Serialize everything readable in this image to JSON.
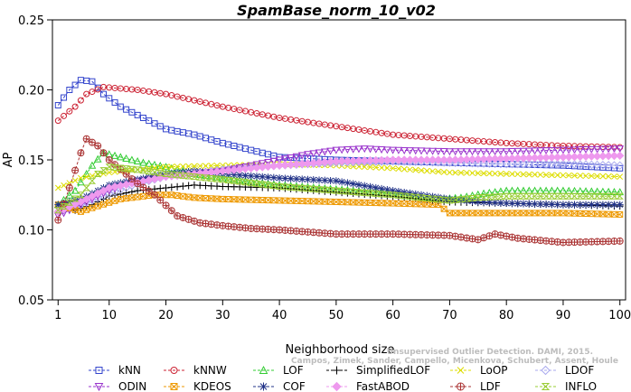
{
  "chart_data": {
    "type": "line",
    "title": "SpamBase_norm_10_v02",
    "xlabel": "Neighborhood size",
    "ylabel": "AP",
    "xlim": [
      0,
      101
    ],
    "ylim": [
      0.05,
      0.25
    ],
    "x_ticks": [
      "1",
      "10",
      "20",
      "30",
      "40",
      "50",
      "60",
      "70",
      "80",
      "90",
      "100"
    ],
    "y_ticks": [
      "0.05",
      "0.10",
      "0.15",
      "0.20",
      "0.25"
    ],
    "x_tick_values": [
      1,
      10,
      20,
      30,
      40,
      50,
      60,
      70,
      80,
      90,
      100
    ],
    "y_tick_values": [
      0.05,
      0.1,
      0.15,
      0.2,
      0.25
    ],
    "grid": false,
    "legend_position": "bottom",
    "watermark": [
      "Unsupervised Outlier Detection. DAMI, 2015.",
      "Campos, Zimek, Sander, Campello, Micenkova, Schubert, Assent, Houle"
    ],
    "x_start": 1,
    "x_end": 100,
    "series": [
      {
        "name": "kNN",
        "color": "#3344cc",
        "marker": "square",
        "anchors": [
          [
            1,
            0.189
          ],
          [
            3,
            0.2
          ],
          [
            5,
            0.207
          ],
          [
            7,
            0.206
          ],
          [
            9,
            0.197
          ],
          [
            12,
            0.188
          ],
          [
            16,
            0.18
          ],
          [
            20,
            0.172
          ],
          [
            25,
            0.168
          ],
          [
            30,
            0.162
          ],
          [
            35,
            0.157
          ],
          [
            40,
            0.152
          ],
          [
            50,
            0.15
          ],
          [
            60,
            0.149
          ],
          [
            70,
            0.148
          ],
          [
            80,
            0.147
          ],
          [
            90,
            0.146
          ],
          [
            100,
            0.144
          ]
        ]
      },
      {
        "name": "kNNW",
        "color": "#cc2233",
        "marker": "circle",
        "anchors": [
          [
            1,
            0.178
          ],
          [
            4,
            0.188
          ],
          [
            6,
            0.197
          ],
          [
            9,
            0.202
          ],
          [
            15,
            0.2
          ],
          [
            20,
            0.197
          ],
          [
            30,
            0.188
          ],
          [
            40,
            0.18
          ],
          [
            50,
            0.174
          ],
          [
            60,
            0.168
          ],
          [
            70,
            0.165
          ],
          [
            80,
            0.162
          ],
          [
            90,
            0.16
          ],
          [
            100,
            0.159
          ]
        ]
      },
      {
        "name": "LOF",
        "color": "#33cc33",
        "marker": "triangle",
        "anchors": [
          [
            1,
            0.118
          ],
          [
            4,
            0.128
          ],
          [
            7,
            0.146
          ],
          [
            9,
            0.155
          ],
          [
            12,
            0.152
          ],
          [
            16,
            0.148
          ],
          [
            20,
            0.145
          ],
          [
            25,
            0.14
          ],
          [
            30,
            0.137
          ],
          [
            40,
            0.132
          ],
          [
            50,
            0.129
          ],
          [
            60,
            0.126
          ],
          [
            68,
            0.122
          ],
          [
            72,
            0.123
          ],
          [
            76,
            0.126
          ],
          [
            80,
            0.128
          ],
          [
            90,
            0.128
          ],
          [
            100,
            0.127
          ]
        ]
      },
      {
        "name": "SimplifiedLOF",
        "color": "#000000",
        "marker": "plus",
        "anchors": [
          [
            1,
            0.116
          ],
          [
            4,
            0.114
          ],
          [
            7,
            0.118
          ],
          [
            10,
            0.124
          ],
          [
            15,
            0.128
          ],
          [
            20,
            0.13
          ],
          [
            25,
            0.132
          ],
          [
            30,
            0.131
          ],
          [
            40,
            0.13
          ],
          [
            50,
            0.127
          ],
          [
            60,
            0.124
          ],
          [
            70,
            0.12
          ],
          [
            80,
            0.119
          ],
          [
            90,
            0.118
          ],
          [
            100,
            0.117
          ]
        ]
      },
      {
        "name": "LoOP",
        "color": "#dddd00",
        "marker": "x",
        "anchors": [
          [
            1,
            0.13
          ],
          [
            5,
            0.137
          ],
          [
            10,
            0.141
          ],
          [
            15,
            0.143
          ],
          [
            20,
            0.145
          ],
          [
            30,
            0.146
          ],
          [
            40,
            0.147
          ],
          [
            50,
            0.146
          ],
          [
            60,
            0.144
          ],
          [
            70,
            0.141
          ],
          [
            80,
            0.14
          ],
          [
            90,
            0.139
          ],
          [
            100,
            0.138
          ]
        ]
      },
      {
        "name": "LDOF",
        "color": "#aaaaee",
        "marker": "diamond",
        "anchors": [
          [
            1,
            0.113
          ],
          [
            5,
            0.118
          ],
          [
            10,
            0.126
          ],
          [
            15,
            0.133
          ],
          [
            20,
            0.138
          ],
          [
            30,
            0.143
          ],
          [
            40,
            0.146
          ],
          [
            50,
            0.148
          ],
          [
            60,
            0.149
          ],
          [
            70,
            0.148
          ],
          [
            80,
            0.147
          ],
          [
            90,
            0.147
          ],
          [
            100,
            0.146
          ]
        ]
      },
      {
        "name": "ODIN",
        "color": "#9933cc",
        "marker": "triangle-down",
        "anchors": [
          [
            1,
            0.11
          ],
          [
            5,
            0.118
          ],
          [
            10,
            0.128
          ],
          [
            15,
            0.135
          ],
          [
            20,
            0.138
          ],
          [
            30,
            0.142
          ],
          [
            40,
            0.15
          ],
          [
            45,
            0.154
          ],
          [
            50,
            0.157
          ],
          [
            55,
            0.158
          ],
          [
            60,
            0.157
          ],
          [
            70,
            0.156
          ],
          [
            80,
            0.156
          ],
          [
            90,
            0.157
          ],
          [
            100,
            0.158
          ]
        ]
      },
      {
        "name": "KDEOS",
        "color": "#ee9900",
        "marker": "square-x",
        "anchors": [
          [
            1,
            0.118
          ],
          [
            5,
            0.113
          ],
          [
            8,
            0.117
          ],
          [
            12,
            0.122
          ],
          [
            18,
            0.125
          ],
          [
            21,
            0.125
          ],
          [
            25,
            0.123
          ],
          [
            30,
            0.122
          ],
          [
            40,
            0.121
          ],
          [
            50,
            0.12
          ],
          [
            60,
            0.119
          ],
          [
            68,
            0.118
          ],
          [
            70,
            0.112
          ],
          [
            80,
            0.112
          ],
          [
            90,
            0.112
          ],
          [
            100,
            0.111
          ]
        ]
      },
      {
        "name": "COF",
        "color": "#223388",
        "marker": "asterisk",
        "anchors": [
          [
            1,
            0.118
          ],
          [
            5,
            0.122
          ],
          [
            10,
            0.132
          ],
          [
            15,
            0.136
          ],
          [
            20,
            0.14
          ],
          [
            25,
            0.142
          ],
          [
            30,
            0.14
          ],
          [
            40,
            0.137
          ],
          [
            50,
            0.135
          ],
          [
            60,
            0.128
          ],
          [
            70,
            0.122
          ],
          [
            75,
            0.12
          ],
          [
            80,
            0.119
          ],
          [
            90,
            0.118
          ],
          [
            100,
            0.118
          ]
        ]
      },
      {
        "name": "FastABOD",
        "color": "#ee99ee",
        "marker": "diamond-filled",
        "anchors": [
          [
            1,
            0.113
          ],
          [
            5,
            0.12
          ],
          [
            10,
            0.13
          ],
          [
            15,
            0.134
          ],
          [
            20,
            0.138
          ],
          [
            30,
            0.142
          ],
          [
            40,
            0.146
          ],
          [
            50,
            0.149
          ],
          [
            60,
            0.15
          ],
          [
            70,
            0.15
          ],
          [
            80,
            0.151
          ],
          [
            90,
            0.152
          ],
          [
            100,
            0.153
          ]
        ]
      },
      {
        "name": "LDF",
        "color": "#aa3333",
        "marker": "circle-plus",
        "anchors": [
          [
            1,
            0.107
          ],
          [
            3,
            0.13
          ],
          [
            5,
            0.155
          ],
          [
            6,
            0.165
          ],
          [
            8,
            0.16
          ],
          [
            10,
            0.15
          ],
          [
            15,
            0.133
          ],
          [
            18,
            0.125
          ],
          [
            22,
            0.11
          ],
          [
            26,
            0.105
          ],
          [
            30,
            0.103
          ],
          [
            35,
            0.101
          ],
          [
            40,
            0.1
          ],
          [
            50,
            0.097
          ],
          [
            60,
            0.097
          ],
          [
            70,
            0.096
          ],
          [
            75,
            0.093
          ],
          [
            78,
            0.097
          ],
          [
            82,
            0.094
          ],
          [
            90,
            0.091
          ],
          [
            100,
            0.092
          ]
        ]
      },
      {
        "name": "INFLO",
        "color": "#99cc33",
        "marker": "hourglass",
        "anchors": [
          [
            1,
            0.114
          ],
          [
            5,
            0.125
          ],
          [
            8,
            0.14
          ],
          [
            10,
            0.145
          ],
          [
            15,
            0.143
          ],
          [
            20,
            0.14
          ],
          [
            30,
            0.136
          ],
          [
            40,
            0.131
          ],
          [
            50,
            0.128
          ],
          [
            60,
            0.125
          ],
          [
            70,
            0.121
          ],
          [
            75,
            0.123
          ],
          [
            80,
            0.124
          ],
          [
            90,
            0.124
          ],
          [
            100,
            0.124
          ]
        ]
      }
    ]
  }
}
